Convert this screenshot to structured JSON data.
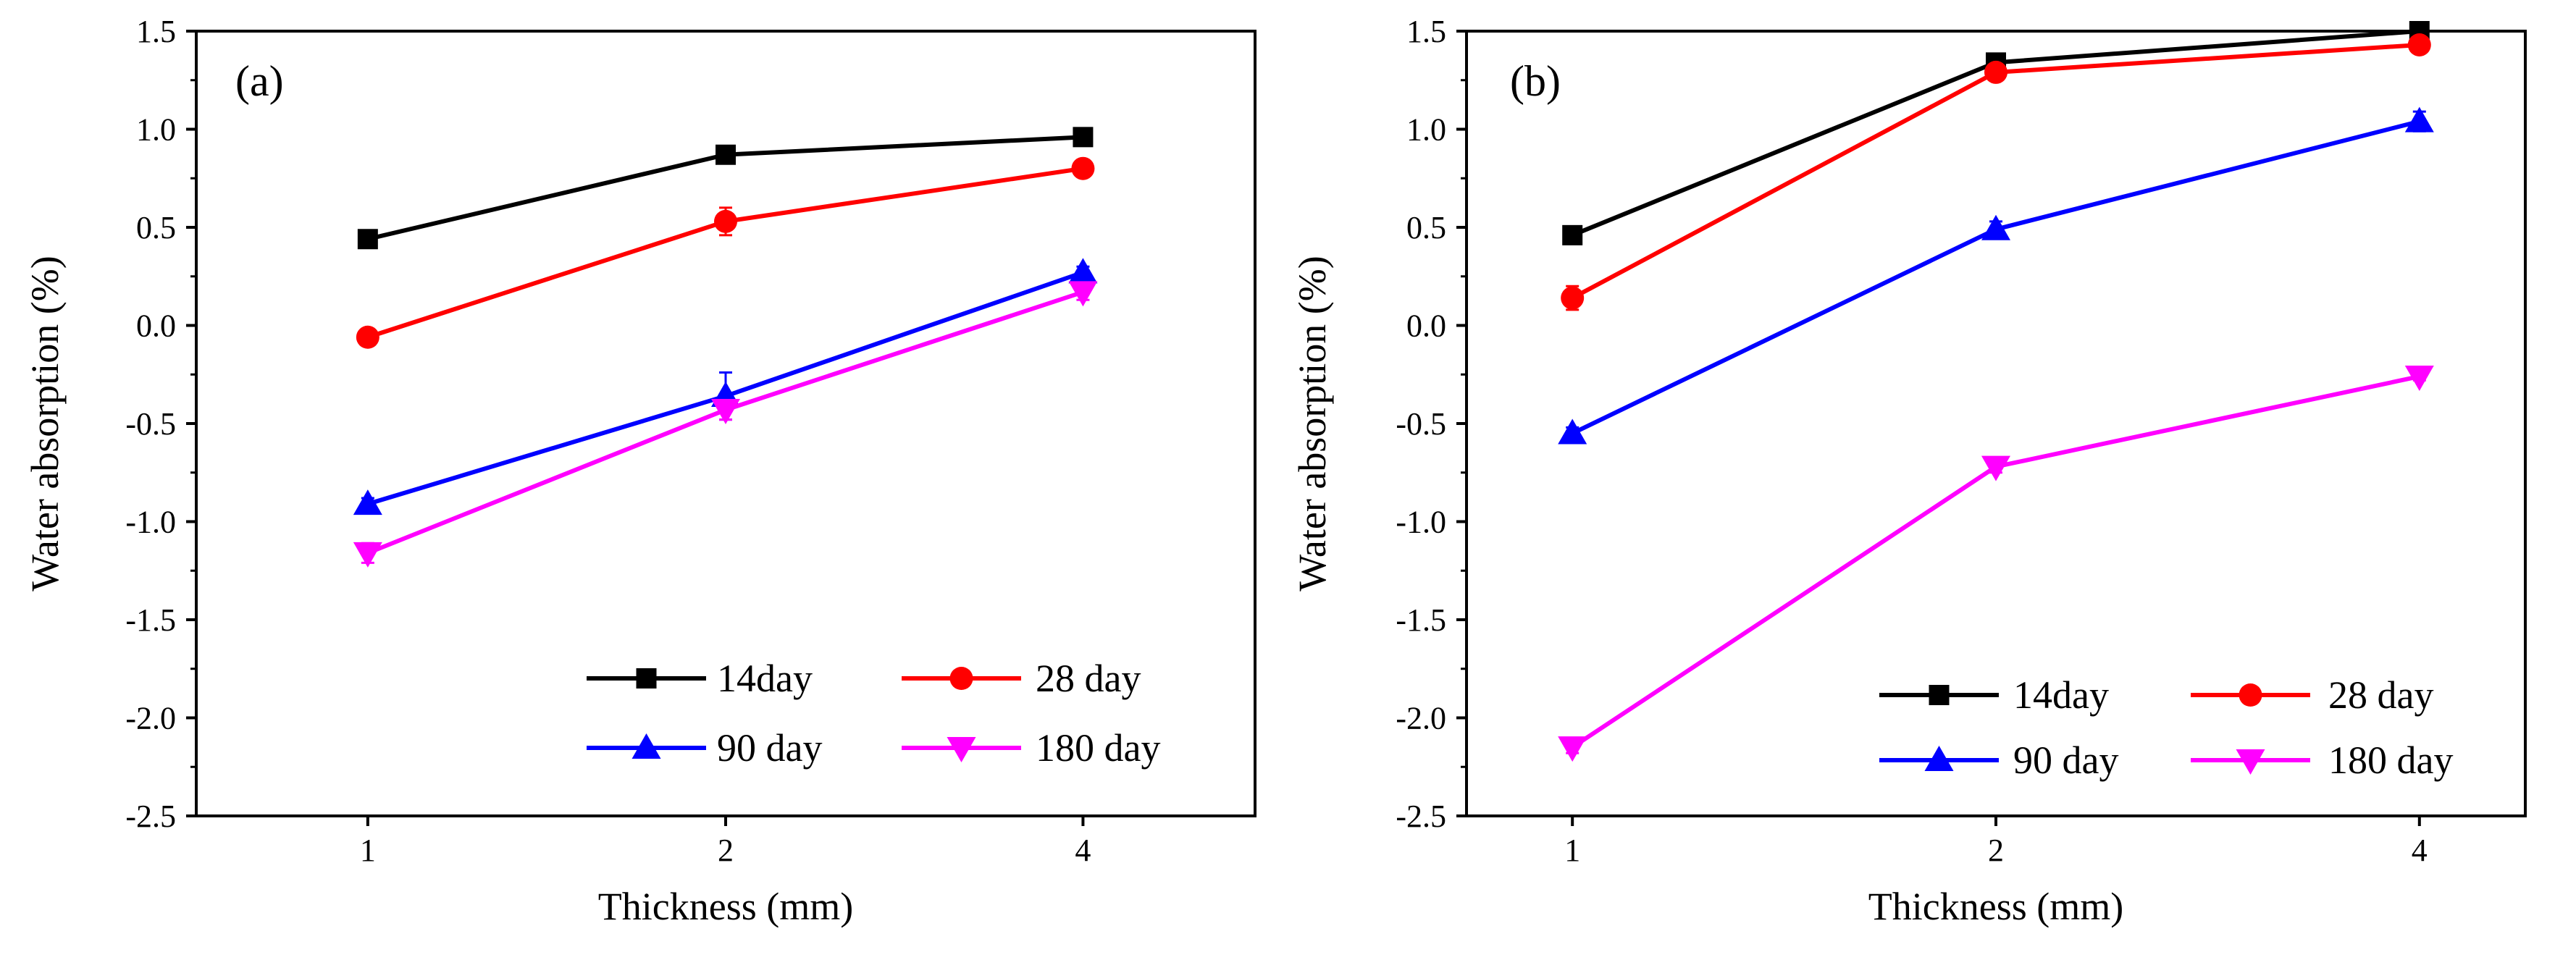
{
  "chart_data": [
    {
      "type": "line",
      "panel_label": "(a)",
      "xlabel": "Thickness (mm)",
      "ylabel": "Water absorption (%)",
      "categories": [
        "1",
        "2",
        "4"
      ],
      "ylim": [
        -2.5,
        1.5
      ],
      "yticks": [
        "-2.5",
        "-2.0",
        "-1.5",
        "-1.0",
        "-0.5",
        "0.0",
        "0.5",
        "1.0",
        "1.5"
      ],
      "grid": false,
      "legend_position": "bottom-right",
      "series": [
        {
          "name": "14day",
          "values": [
            0.44,
            0.87,
            0.96
          ],
          "errors": [
            0.02,
            0.03,
            0.02
          ],
          "color": "#000000",
          "marker": "square"
        },
        {
          "name": "28 day",
          "values": [
            -0.06,
            0.53,
            0.8
          ],
          "errors": [
            0.02,
            0.07,
            0.02
          ],
          "color": "#ff0000",
          "marker": "circle"
        },
        {
          "name": "90 day",
          "values": [
            -0.91,
            -0.36,
            0.27
          ],
          "errors": [
            0.03,
            0.12,
            0.03
          ],
          "color": "#0000ff",
          "marker": "triangle-up"
        },
        {
          "name": "180 day",
          "values": [
            -1.16,
            -0.43,
            0.17
          ],
          "errors": [
            0.05,
            0.05,
            0.04
          ],
          "color": "#ff00ff",
          "marker": "triangle-down"
        }
      ]
    },
    {
      "type": "line",
      "panel_label": "(b)",
      "xlabel": "Thickness (mm)",
      "ylabel": "Water absorption (%)",
      "categories": [
        "1",
        "2",
        "4"
      ],
      "ylim": [
        -2.5,
        1.5
      ],
      "yticks": [
        "-2.5",
        "-2.0",
        "-1.5",
        "-1.0",
        "-0.5",
        "0.0",
        "0.5",
        "1.0",
        "1.5"
      ],
      "grid": false,
      "legend_position": "bottom-right",
      "series": [
        {
          "name": "14day",
          "values": [
            0.46,
            1.34,
            1.5
          ],
          "errors": [
            0.02,
            0.02,
            0.04
          ],
          "color": "#000000",
          "marker": "square"
        },
        {
          "name": "28 day",
          "values": [
            0.14,
            1.29,
            1.43
          ],
          "errors": [
            0.06,
            0.03,
            0.03
          ],
          "color": "#ff0000",
          "marker": "circle"
        },
        {
          "name": "90 day",
          "values": [
            -0.55,
            0.49,
            1.04
          ],
          "errors": [
            0.03,
            0.04,
            0.05
          ],
          "color": "#0000ff",
          "marker": "triangle-up"
        },
        {
          "name": "180 day",
          "values": [
            -2.15,
            -0.72,
            -0.26
          ],
          "errors": [
            0.03,
            0.03,
            0.02
          ],
          "color": "#ff00ff",
          "marker": "triangle-down"
        }
      ]
    }
  ]
}
